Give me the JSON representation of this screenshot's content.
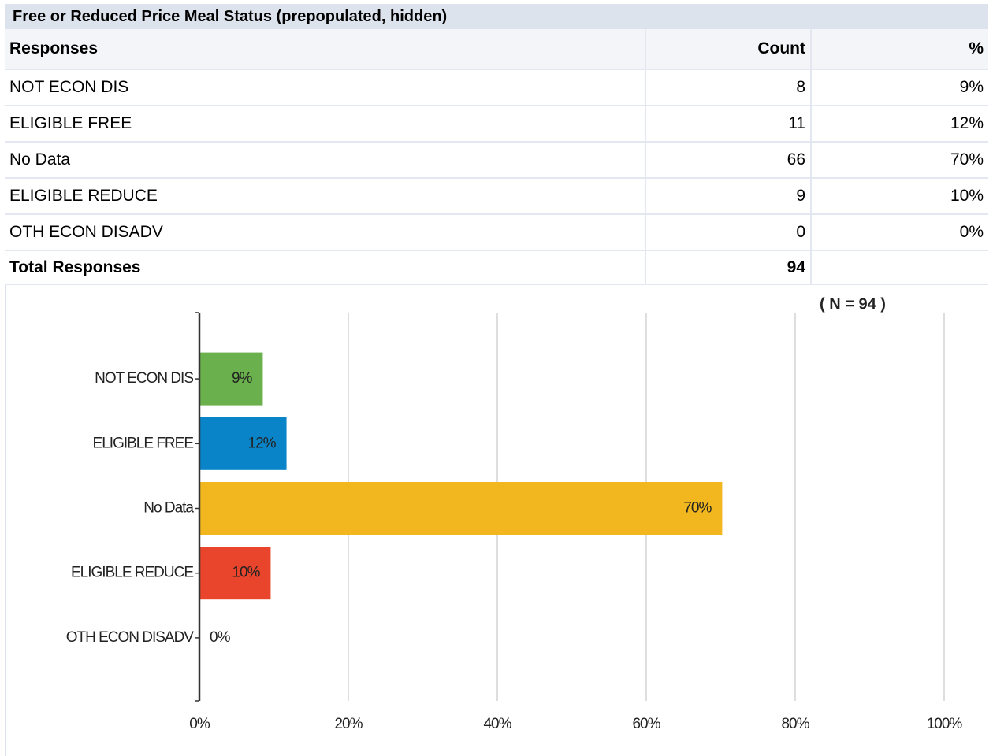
{
  "table": {
    "title": "Free or Reduced Price Meal Status (prepopulated, hidden)",
    "header": [
      "Responses",
      "Count",
      "%"
    ],
    "rows": [
      [
        "NOT ECON DIS",
        8,
        "9%"
      ],
      [
        "ELIGIBLE FREE",
        11,
        "12%"
      ],
      [
        "No Data",
        66,
        "70%"
      ],
      [
        "ELIGIBLE REDUCE",
        9,
        "10%"
      ],
      [
        "OTH ECON DISADV",
        0,
        "0%"
      ]
    ],
    "total": [
      "Total Responses",
      94
    ]
  },
  "chart_data": {
    "type": "hbar",
    "annotation": "( N = 94 )",
    "categories": [
      "NOT ECON DIS",
      "ELIGIBLE FREE",
      "No Data",
      "ELIGIBLE REDUCE",
      "OTH ECON DISADV"
    ],
    "values": [
      8.51,
      11.7,
      70.2,
      9.57,
      0
    ],
    "value_labels": [
      "9%",
      "12%",
      "70%",
      "10%",
      "0%"
    ],
    "colors": [
      "#6ab04c",
      "#0a84c8",
      "#f2b71e",
      "#e8452c"
    ],
    "xlim": [
      0,
      100
    ],
    "xticks": [
      {
        "value": 0,
        "label": "0%"
      },
      {
        "value": 20,
        "label": "20%"
      },
      {
        "value": 40,
        "label": "40%"
      },
      {
        "value": 60,
        "label": "60%"
      },
      {
        "value": 80,
        "label": "80%"
      },
      {
        "value": 100,
        "label": "100%"
      }
    ],
    "grid": true
  }
}
